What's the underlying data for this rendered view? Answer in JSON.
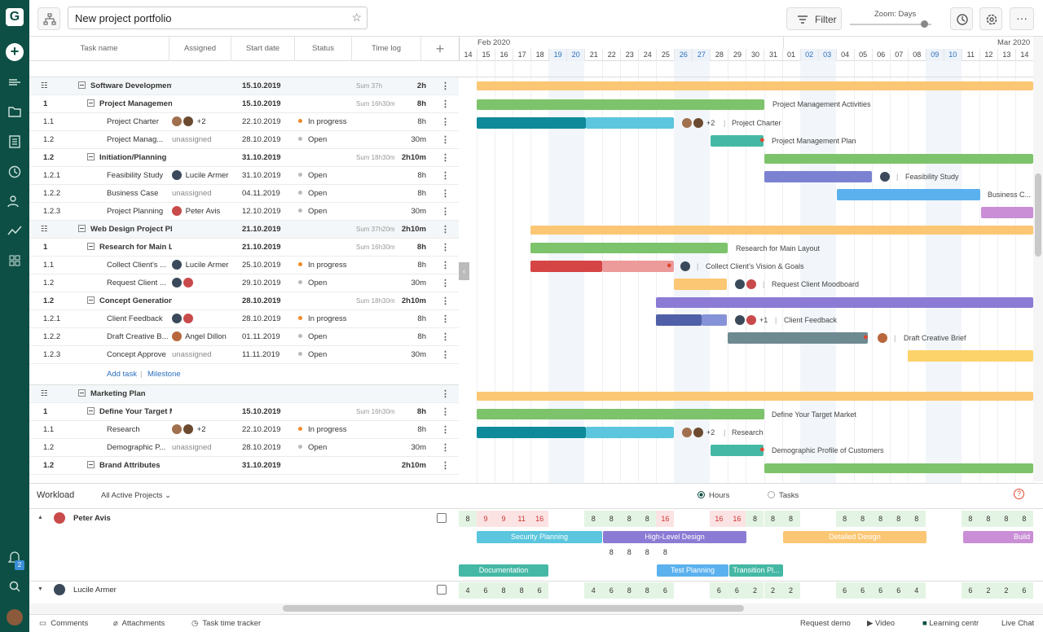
{
  "app": {
    "logo": "G"
  },
  "sidebar": {
    "items": [
      {
        "icon": "list-icon"
      },
      {
        "icon": "folder-icon"
      },
      {
        "icon": "document-icon"
      },
      {
        "icon": "clock-icon"
      },
      {
        "icon": "people-icon"
      },
      {
        "icon": "analytics-icon"
      },
      {
        "icon": "apps-icon"
      }
    ],
    "notifications_count": "2"
  },
  "header": {
    "project_title": "New project portfolio",
    "filter_label": "Filter",
    "zoom_label": "Zoom: Days"
  },
  "grid": {
    "columns": {
      "task_name": "Task name",
      "assigned": "Assigned",
      "start_date": "Start date",
      "status": "Status",
      "time_log": "Time log"
    }
  },
  "timeline": {
    "month_left": "Feb 2020",
    "month_right": "Mar 2020",
    "days": [
      "14",
      "15",
      "16",
      "17",
      "18",
      "19",
      "20",
      "21",
      "22",
      "23",
      "24",
      "25",
      "26",
      "27",
      "28",
      "29",
      "30",
      "31",
      "01",
      "02",
      "03",
      "04",
      "05",
      "06",
      "07",
      "08",
      "09",
      "10",
      "11",
      "12",
      "13",
      "14"
    ],
    "weekend_index": [
      5,
      6,
      12,
      13,
      19,
      20,
      26,
      27
    ]
  },
  "rows": [
    {
      "kind": "project",
      "num": "",
      "name": "Software Development Plan",
      "assigned": "",
      "start": "15.10.2019",
      "status": "",
      "sum": "Sum 37h",
      "time": "2h"
    },
    {
      "kind": "group",
      "num": "1",
      "name": "Project Management Activities",
      "assigned": "",
      "start": "15.10.2019",
      "status": "",
      "sum": "Sum 16h30m",
      "time": "8h"
    },
    {
      "kind": "task",
      "num": "1.1",
      "name": "Project Charter",
      "assigned": "+2",
      "start": "22.10.2019",
      "status": "In progress",
      "sum": "",
      "time": "8h"
    },
    {
      "kind": "task",
      "num": "1.2",
      "name": "Project Manag...",
      "assigned": "unassigned",
      "start": "28.10.2019",
      "status": "Open",
      "sum": "",
      "time": "30m"
    },
    {
      "kind": "group",
      "num": "1.2",
      "name": "Initiation/Planning",
      "assigned": "",
      "start": "31.10.2019",
      "status": "",
      "sum": "Sum 18h30m",
      "time": "2h10m"
    },
    {
      "kind": "task",
      "num": "1.2.1",
      "name": "Feasibility Study",
      "assigned": "Lucile Armer",
      "start": "31.10.2019",
      "status": "Open",
      "sum": "",
      "time": "8h"
    },
    {
      "kind": "task",
      "num": "1.2.2",
      "name": "Business Case",
      "assigned": "unassigned",
      "start": "04.11.2019",
      "status": "Open",
      "sum": "",
      "time": "8h"
    },
    {
      "kind": "task",
      "num": "1.2.3",
      "name": "Project Planning",
      "assigned": "Peter Avis",
      "start": "12.10.2019",
      "status": "Open",
      "sum": "",
      "time": "30m"
    },
    {
      "kind": "project",
      "num": "",
      "name": "Web Design Project Plan",
      "assigned": "",
      "start": "21.10.2019",
      "status": "",
      "sum": "Sum 37h20m",
      "time": "2h10m"
    },
    {
      "kind": "group",
      "num": "1",
      "name": "Research for Main Layout",
      "assigned": "",
      "start": "21.10.2019",
      "status": "",
      "sum": "Sum 16h30m",
      "time": "8h"
    },
    {
      "kind": "task",
      "num": "1.1",
      "name": "Collect Client's ...",
      "assigned": "Lucile Armer",
      "start": "25.10.2019",
      "status": "In progress",
      "sum": "",
      "time": "8h"
    },
    {
      "kind": "task",
      "num": "1.2",
      "name": "Request Client ...",
      "assigned": "",
      "start": "29.10.2019",
      "status": "Open",
      "sum": "",
      "time": "30m"
    },
    {
      "kind": "group",
      "num": "1.2",
      "name": "Concept Generation",
      "assigned": "",
      "start": "28.10.2019",
      "status": "",
      "sum": "Sum 18h30m",
      "time": "2h10m"
    },
    {
      "kind": "task",
      "num": "1.2.1",
      "name": "Client Feedback",
      "assigned": "",
      "start": "28.10.2019",
      "status": "In progress",
      "sum": "",
      "time": "8h"
    },
    {
      "kind": "task",
      "num": "1.2.2",
      "name": "Draft Creative B...",
      "assigned": "Angel Dillon",
      "start": "01.11.2019",
      "status": "Open",
      "sum": "",
      "time": "8h"
    },
    {
      "kind": "task",
      "num": "1.2.3",
      "name": "Concept Approve",
      "assigned": "unassigned",
      "start": "11.11.2019",
      "status": "Open",
      "sum": "",
      "time": "30m"
    },
    {
      "kind": "add",
      "add_task": "Add task",
      "separator": "|",
      "milestone": "Milestone"
    },
    {
      "kind": "project",
      "num": "",
      "name": "Marketing Plan",
      "assigned": "",
      "start": "",
      "status": "",
      "sum": "",
      "time": ""
    },
    {
      "kind": "group",
      "num": "1",
      "name": "Define Your Target Market",
      "assigned": "",
      "start": "15.10.2019",
      "status": "",
      "sum": "Sum 16h30m",
      "time": "8h"
    },
    {
      "kind": "task",
      "num": "1.1",
      "name": "Research",
      "assigned": "+2",
      "start": "22.10.2019",
      "status": "In progress",
      "sum": "",
      "time": "8h"
    },
    {
      "kind": "task",
      "num": "1.2",
      "name": "Demographic P...",
      "assigned": "unassigned",
      "start": "28.10.2019",
      "status": "Open",
      "sum": "",
      "time": "30m"
    },
    {
      "kind": "group",
      "num": "1.2",
      "name": "Brand Attributes",
      "assigned": "",
      "start": "31.10.2019",
      "status": "",
      "sum": "",
      "time": "2h10m"
    }
  ],
  "gantt_labels": {
    "pma": "Project Management Activities",
    "charter_more": "+2",
    "charter": "Project Charter",
    "pmp": "Project Management Plan",
    "feasibility": "Feasibility Study",
    "business": "Business C...",
    "research_layout": "Research for Main Layout",
    "collect": "Collect Client's Vision & Goals",
    "moodboard": "Request Client Moodboard",
    "feedback_more": "+1",
    "feedback": "Client Feedback",
    "draft": "Draft Creative Brief",
    "target": "Define Your Target Market",
    "research_more": "+2",
    "research": "Research",
    "demographic": "Demographic Profile of Customers"
  },
  "workload": {
    "title": "Workload",
    "filter": "All Active Projects",
    "hours": "Hours",
    "tasks": "Tasks",
    "people": [
      {
        "name": "Peter Avis",
        "hours": [
          "8",
          "9",
          "9",
          "11",
          "16",
          "",
          "",
          "8",
          "8",
          "8",
          "8",
          "16",
          "",
          "",
          "16",
          "16",
          "8",
          "8",
          "8",
          "",
          "",
          "8",
          "8",
          "8",
          "8",
          "8",
          "",
          "",
          "8",
          "8",
          "8",
          "8"
        ],
        "hours2": [
          "",
          "",
          "",
          "",
          "",
          "",
          "",
          "",
          "8",
          "8",
          "8",
          "8",
          "",
          "",
          "",
          "",
          "",
          "",
          "",
          "",
          "",
          "",
          "",
          "",
          "",
          "",
          "",
          "",
          "",
          "",
          "",
          ""
        ],
        "bars": [
          {
            "label": "Security Planning"
          },
          {
            "label": "High-Level Design"
          },
          {
            "label": "Detailed Design"
          },
          {
            "label": "Build"
          },
          {
            "label": "Documentation"
          },
          {
            "label": "Test Planning"
          },
          {
            "label": "Transition Pl..."
          }
        ]
      },
      {
        "name": "Lucile Armer",
        "hours": [
          "4",
          "6",
          "8",
          "8",
          "6",
          "",
          "",
          "4",
          "6",
          "8",
          "8",
          "6",
          "",
          "",
          "6",
          "6",
          "2",
          "2",
          "2",
          "",
          "",
          "6",
          "6",
          "6",
          "6",
          "4",
          "",
          "",
          "6",
          "2",
          "2",
          "6"
        ]
      }
    ]
  },
  "footer": {
    "comments": "Comments",
    "attachments": "Attachments",
    "tracker": "Task time tracker",
    "demo": "Request demo",
    "video": "Video",
    "learning": "Learning centr",
    "chat": "Live Chat"
  },
  "colors": {
    "brand": "#0d4f44",
    "orange": "#fbc774",
    "green": "#7dc36b",
    "teal": "#0e8a9a",
    "sky": "#5bc6dd",
    "purple": "#8c7bd4",
    "blue": "#5bb1ee",
    "red": "#d64545",
    "gray": "#6e8a91",
    "yellow": "#fcd26b"
  }
}
